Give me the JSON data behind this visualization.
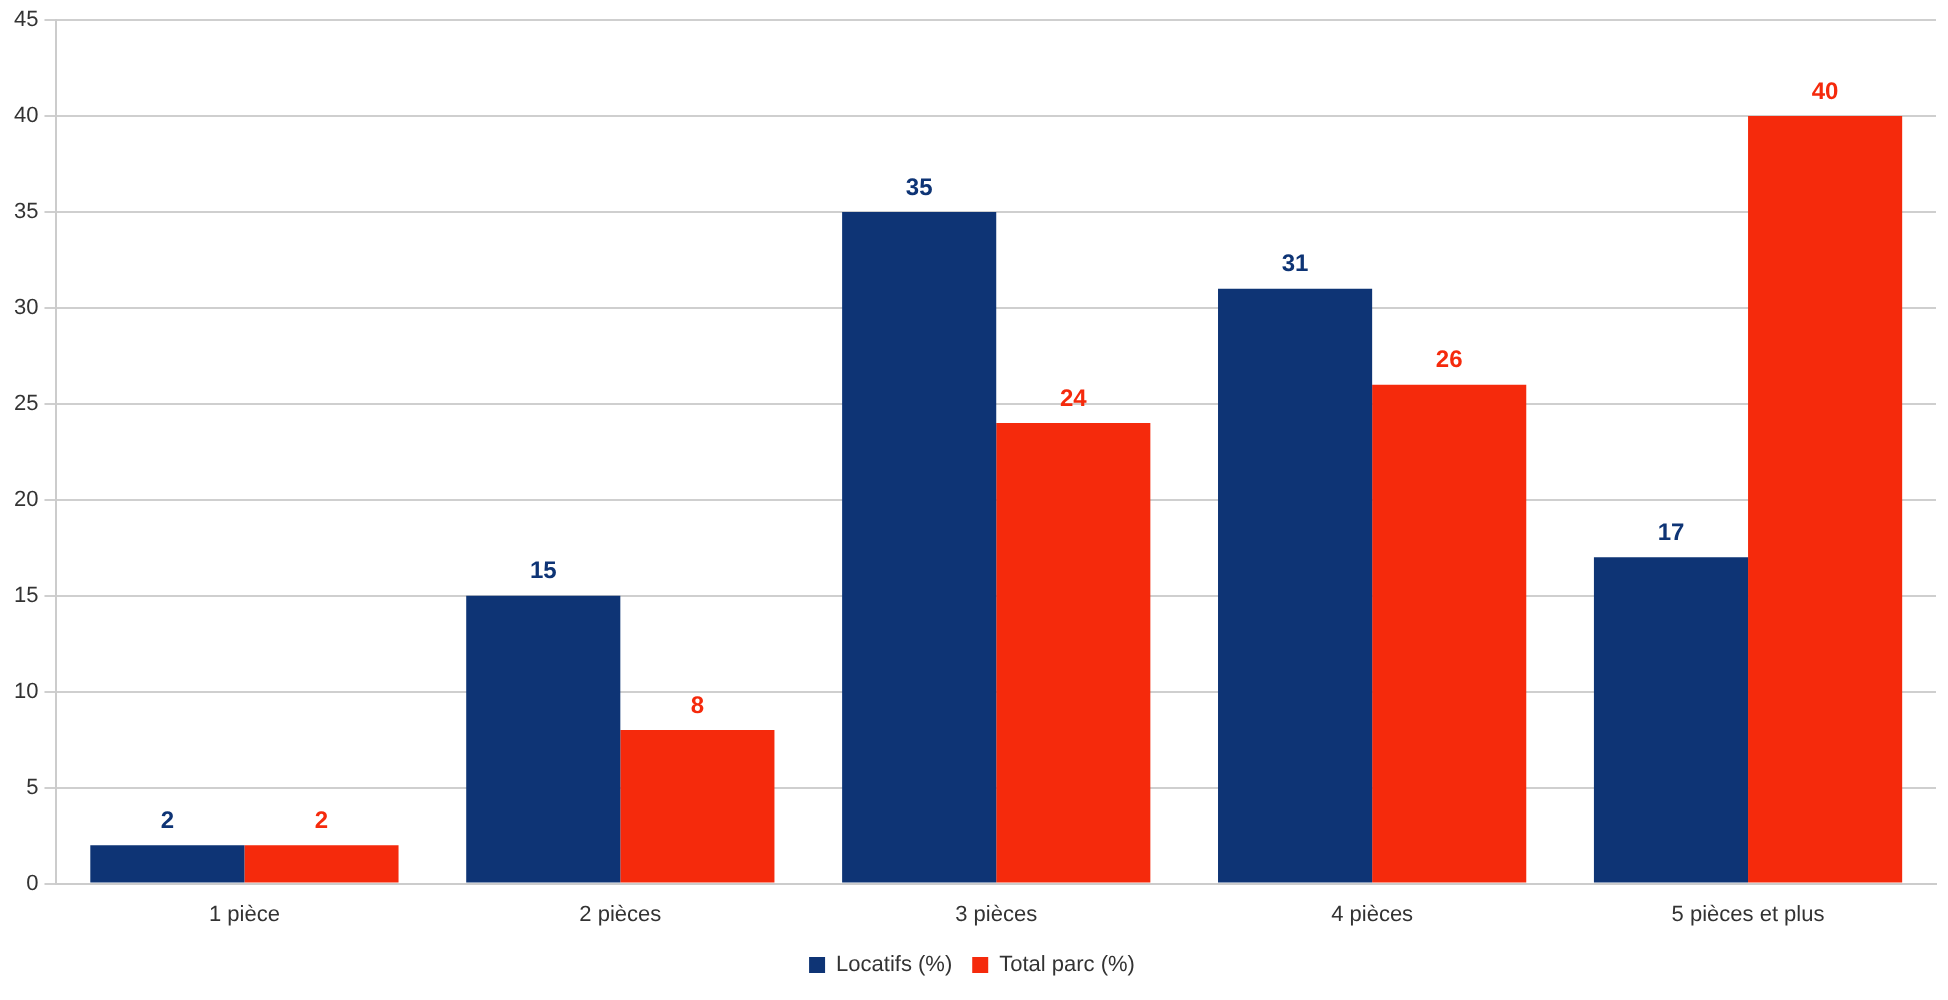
{
  "chart_data": {
    "type": "bar",
    "categories": [
      "1 pièce",
      "2 pièces",
      "3 pièces",
      "4 pièces",
      "5 pièces et plus"
    ],
    "series": [
      {
        "name": "Locatifs (%)",
        "color": "#0e3475",
        "values": [
          2,
          15,
          35,
          31,
          17
        ]
      },
      {
        "name": "Total parc (%)",
        "color": "#f52a0c",
        "values": [
          2,
          8,
          24,
          26,
          40
        ]
      }
    ],
    "ylim": [
      0,
      45
    ],
    "yticks": [
      0,
      5,
      10,
      15,
      20,
      25,
      30,
      35,
      40,
      45
    ],
    "grid": "y",
    "legend": "bottom",
    "data_labels": true
  }
}
